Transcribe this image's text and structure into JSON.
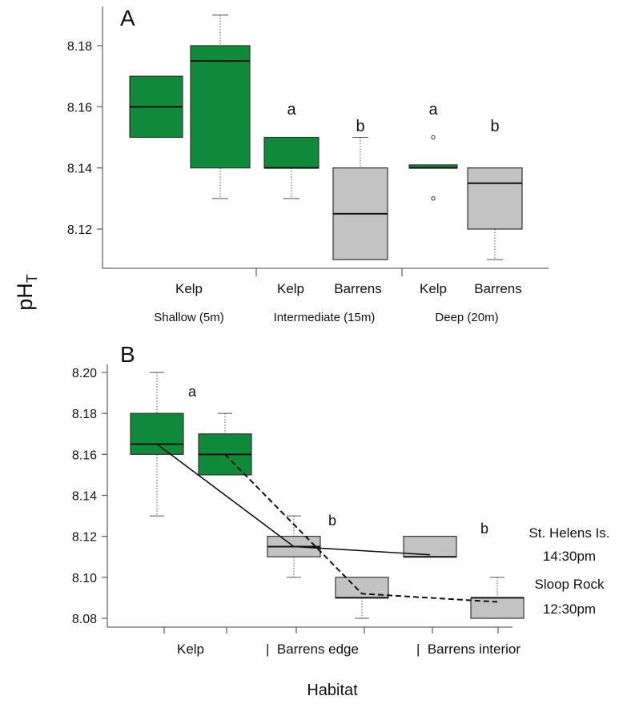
{
  "figure": {
    "ylabel_main": "pH",
    "ylabel_sub": "T",
    "colors": {
      "kelp": "#0f8a3a",
      "barrens": "#c3c3c3",
      "line": "#111111"
    }
  },
  "chart_data": [
    {
      "type": "box",
      "panel_label": "A",
      "ylim": [
        8.11,
        8.19
      ],
      "ticks": [
        8.12,
        8.14,
        8.16,
        8.18
      ],
      "tick_labels": [
        "8.12",
        "8.14",
        "8.16",
        "8.18"
      ],
      "group_labels": [
        "Shallow (5m)",
        "Intermediate (15m)",
        "Deep (20m)"
      ],
      "boxes": [
        {
          "id": "a-shallow-1",
          "habitat": "kelp",
          "q1": 8.15,
          "median": 8.16,
          "q3": 8.17,
          "whisker_low": null,
          "whisker_high": null,
          "outliers": []
        },
        {
          "id": "a-shallow-2",
          "habitat": "kelp",
          "q1": 8.14,
          "median": 8.175,
          "q3": 8.18,
          "whisker_low": 8.13,
          "whisker_high": 8.19,
          "outliers": []
        },
        {
          "id": "a-intermediate-kelp",
          "habitat": "kelp",
          "q1": 8.14,
          "median": 8.14,
          "q3": 8.15,
          "whisker_low": 8.13,
          "whisker_high": null,
          "outliers": [],
          "letter": "a"
        },
        {
          "id": "a-intermediate-barrens",
          "habitat": "barrens",
          "q1": 8.11,
          "median": 8.125,
          "q3": 8.14,
          "whisker_low": null,
          "whisker_high": 8.15,
          "outliers": [],
          "letter": "b"
        },
        {
          "id": "a-deep-kelp",
          "habitat": "kelp",
          "q1": 8.14,
          "median": 8.14,
          "q3": 8.141,
          "whisker_low": null,
          "whisker_high": null,
          "outliers": [
            8.15,
            8.13
          ],
          "letter": "a"
        },
        {
          "id": "a-deep-barrens",
          "habitat": "barrens",
          "q1": 8.12,
          "median": 8.135,
          "q3": 8.14,
          "whisker_low": 8.11,
          "whisker_high": null,
          "outliers": [],
          "letter": "b"
        }
      ],
      "category_labels": [
        "Kelp",
        "Kelp",
        "Barrens",
        "Kelp",
        "Barrens"
      ]
    },
    {
      "type": "box",
      "panel_label": "B",
      "ylim": [
        8.075,
        8.205
      ],
      "ticks": [
        8.08,
        8.1,
        8.12,
        8.14,
        8.16,
        8.18,
        8.2
      ],
      "tick_labels": [
        "8.08",
        "8.10",
        "8.12",
        "8.14",
        "8.16",
        "8.18",
        "8.20"
      ],
      "xlabel": "Habitat",
      "categories": [
        "Kelp",
        "|  Barrens edge",
        "|  Barrens interior"
      ],
      "boxes": [
        {
          "id": "b-kelp-1",
          "habitat": "kelp",
          "q1": 8.16,
          "median": 8.165,
          "q3": 8.18,
          "whisker_low": 8.13,
          "whisker_high": 8.2
        },
        {
          "id": "b-kelp-2",
          "habitat": "kelp",
          "q1": 8.15,
          "median": 8.16,
          "q3": 8.17,
          "whisker_low": null,
          "whisker_high": 8.18
        },
        {
          "id": "b-edge-1",
          "habitat": "barrens",
          "q1": 8.11,
          "median": 8.115,
          "q3": 8.12,
          "whisker_low": 8.1,
          "whisker_high": 8.13
        },
        {
          "id": "b-edge-2",
          "habitat": "barrens",
          "q1": 8.09,
          "median": 8.09,
          "q3": 8.1,
          "whisker_low": 8.08,
          "whisker_high": null
        },
        {
          "id": "b-interior-1",
          "habitat": "barrens",
          "q1": 8.11,
          "median": 8.11,
          "q3": 8.12,
          "whisker_low": null,
          "whisker_high": null
        },
        {
          "id": "b-interior-2",
          "habitat": "barrens",
          "q1": 8.08,
          "median": 8.09,
          "q3": 8.09,
          "whisker_low": null,
          "whisker_high": 8.1
        }
      ],
      "letters": [
        "a",
        "b",
        "b"
      ],
      "series": [
        {
          "name": "St. Helens Is.",
          "time": "14:30pm",
          "style": "solid",
          "values": [
            8.165,
            8.115,
            8.111
          ]
        },
        {
          "name": "Sloop Rock",
          "time": "12:30pm",
          "style": "dashed",
          "values": [
            8.16,
            8.092,
            8.088
          ]
        }
      ]
    }
  ]
}
